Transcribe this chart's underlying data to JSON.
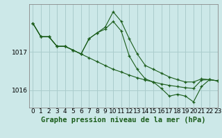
{
  "title": "Graphe pression niveau de la mer (hPa)",
  "bg_color": "#cce8e8",
  "grid_color": "#aacccc",
  "line_color": "#1a5c1a",
  "xlim": [
    -0.5,
    23
  ],
  "ylim": [
    1015.55,
    1018.25
  ],
  "yticks": [
    1016,
    1017
  ],
  "xticks": [
    0,
    1,
    2,
    3,
    4,
    5,
    6,
    7,
    8,
    9,
    10,
    11,
    12,
    13,
    14,
    15,
    16,
    17,
    18,
    19,
    20,
    21,
    22,
    23
  ],
  "series1": [
    1017.75,
    1017.4,
    1017.4,
    1017.15,
    1017.15,
    1017.05,
    1016.95,
    1016.85,
    1016.75,
    1016.65,
    1016.55,
    1016.48,
    1016.4,
    1016.33,
    1016.27,
    1016.22,
    1016.17,
    1016.13,
    1016.1,
    1016.07,
    1016.05,
    1016.27,
    1016.28,
    1016.25
  ],
  "series2": [
    1017.75,
    1017.4,
    1017.4,
    1017.15,
    1017.15,
    1017.05,
    1016.95,
    1017.35,
    1017.5,
    1017.65,
    1018.05,
    1017.8,
    1017.35,
    1016.95,
    1016.65,
    1016.55,
    1016.45,
    1016.35,
    1016.28,
    1016.22,
    1016.22,
    1016.3,
    1016.28,
    1016.25
  ],
  "series3": [
    1017.75,
    1017.4,
    1017.4,
    1017.15,
    1017.15,
    1017.05,
    1016.95,
    1017.35,
    1017.5,
    1017.6,
    1017.8,
    1017.55,
    1016.9,
    1016.55,
    1016.3,
    1016.22,
    1016.05,
    1015.85,
    1015.9,
    1015.85,
    1015.7,
    1016.1,
    1016.28,
    1016.25
  ],
  "title_fontsize": 7.5,
  "tick_fontsize": 6.5,
  "ylabel_fontsize": 6.5
}
